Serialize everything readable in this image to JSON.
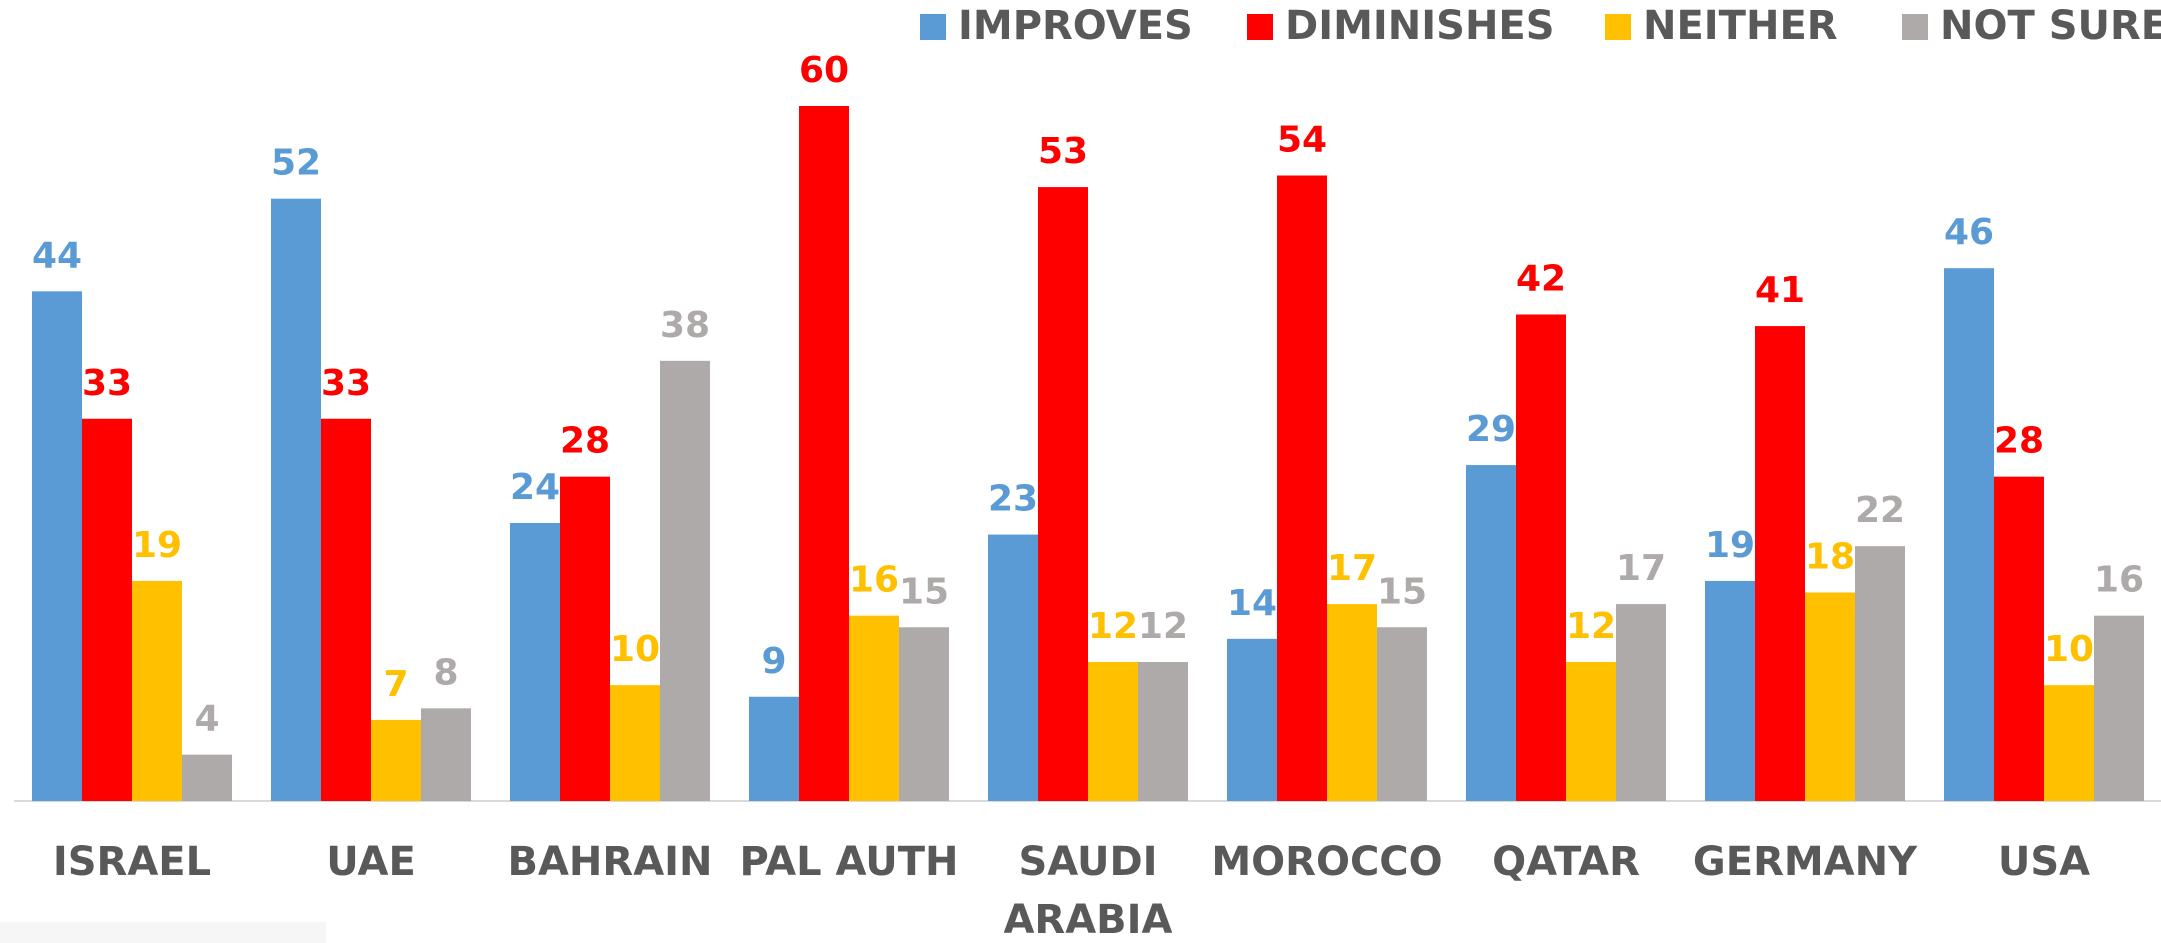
{
  "chart_data": {
    "type": "bar",
    "categories": [
      "ISRAEL",
      "UAE",
      "BAHRAIN",
      "PAL AUTH",
      "SAUDI ARABIA",
      "MOROCCO",
      "QATAR",
      "GERMANY",
      "USA"
    ],
    "series": [
      {
        "name": "IMPROVES",
        "color": "#5b9bd5",
        "values": [
          44,
          52,
          24,
          9,
          23,
          14,
          29,
          19,
          46
        ]
      },
      {
        "name": "DIMINISHES",
        "color": "#ff0000",
        "values": [
          33,
          33,
          28,
          60,
          53,
          54,
          42,
          41,
          28
        ]
      },
      {
        "name": "NEITHER",
        "color": "#ffc000",
        "values": [
          19,
          7,
          10,
          16,
          12,
          17,
          12,
          18,
          10
        ]
      },
      {
        "name": "NOT SURE",
        "color": "#aeaaaa",
        "values": [
          4,
          8,
          38,
          15,
          12,
          15,
          17,
          22,
          16
        ]
      }
    ],
    "legend": "top-right"
  }
}
